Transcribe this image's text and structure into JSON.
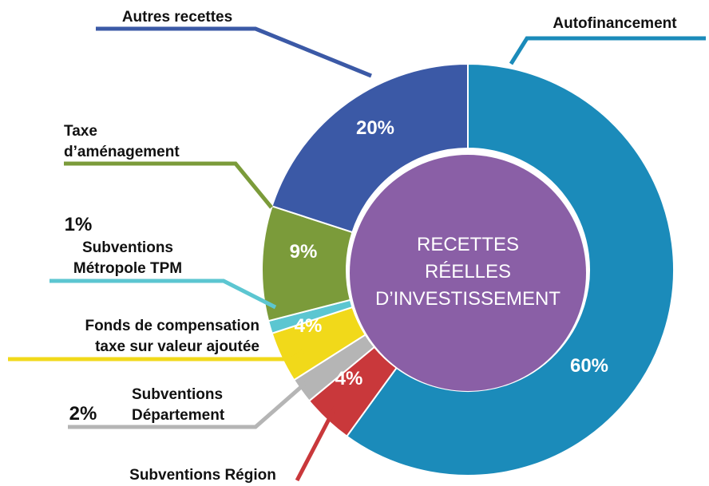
{
  "chart_data": {
    "type": "pie",
    "center_label": "RECETTES\nRÉELLES\nD’INVESTISSEMENT",
    "categories": [
      "Autofinancement",
      "Subventions Région",
      "Subventions\nDépartement",
      "Fonds de compensation\ntaxe sur valeur ajoutée",
      "Subventions\nMétropole TPM",
      "Taxe\nd’aménagement",
      "Autres recettes"
    ],
    "values": [
      60,
      4,
      2,
      4,
      1,
      9,
      20
    ],
    "value_labels": [
      "60%",
      "4%",
      "2%",
      "4%",
      "1%",
      "9%",
      "20%"
    ],
    "colors": [
      "#1b8bba",
      "#c9383b",
      "#b5b5b5",
      "#f1d91a",
      "#5cc6d1",
      "#7b9b3a",
      "#3b59a6"
    ],
    "center_color": "#8a5fa6"
  }
}
